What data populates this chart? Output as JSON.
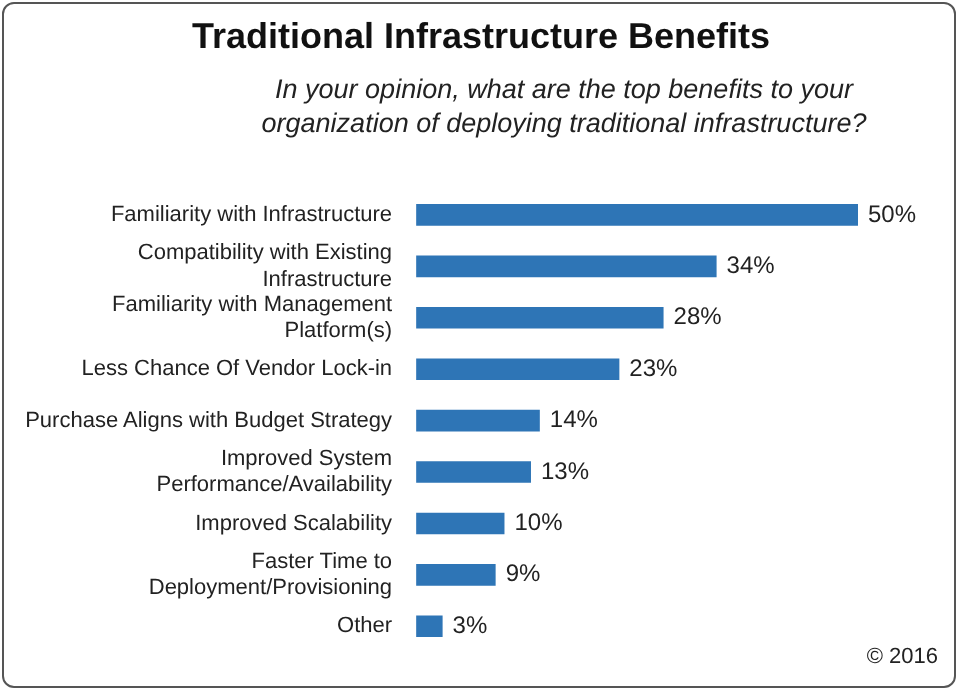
{
  "chart_data": {
    "type": "bar",
    "orientation": "horizontal",
    "title": "Traditional Infrastructure Benefits",
    "subtitle": "In your opinion, what are the top benefits to your organization of deploying traditional infrastructure?",
    "categories": [
      "Familiarity with Infrastructure",
      "Compatibility with Existing Infrastructure",
      "Familiarity with Management Platform(s)",
      "Less Chance Of Vendor Lock-in",
      "Purchase Aligns with Budget Strategy",
      "Improved System Performance/Availability",
      "Improved Scalability",
      "Faster Time to Deployment/Provisioning",
      "Other"
    ],
    "values": [
      50,
      34,
      28,
      23,
      14,
      13,
      10,
      9,
      3
    ],
    "value_labels": [
      "50%",
      "34%",
      "28%",
      "23%",
      "14%",
      "13%",
      "10%",
      "9%",
      "3%"
    ],
    "color": "#2e75b6",
    "grid": false,
    "legend": false,
    "annotations": [
      "© 2016"
    ]
  }
}
